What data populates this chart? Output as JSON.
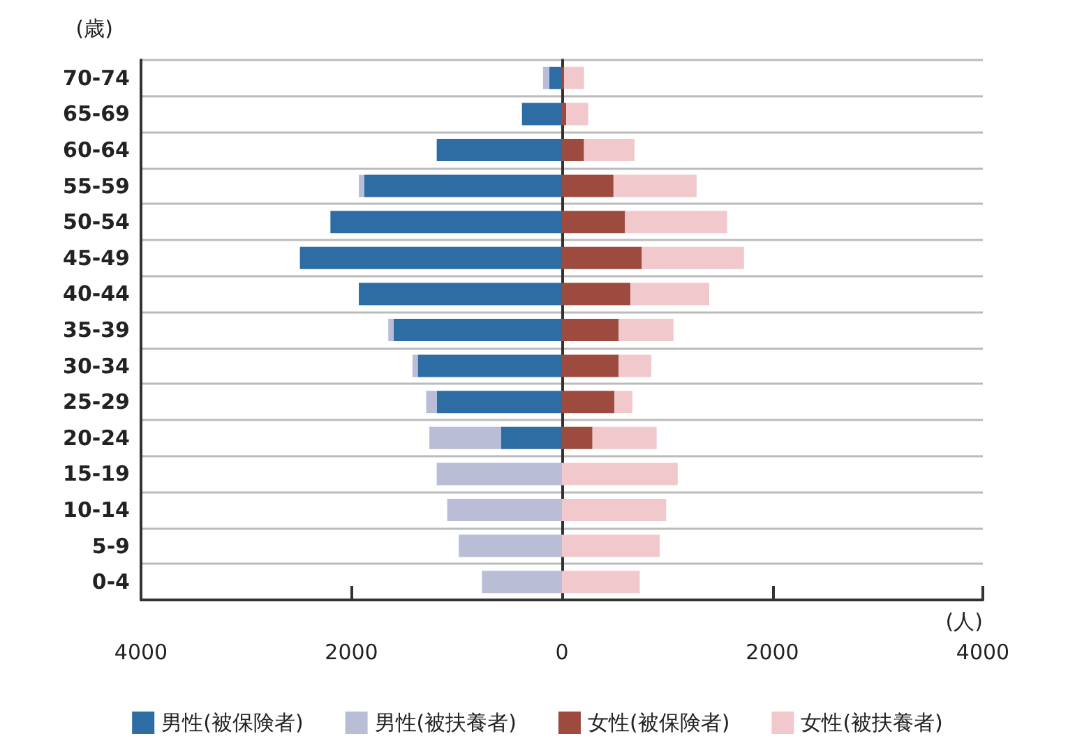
{
  "chart_data": {
    "type": "bar",
    "orientation": "horizontal",
    "stacked": true,
    "categories": [
      "70-74",
      "65-69",
      "60-64",
      "55-59",
      "50-54",
      "45-49",
      "40-44",
      "35-39",
      "30-34",
      "25-29",
      "20-24",
      "15-19",
      "10-14",
      "5-9",
      "0-4"
    ],
    "series": [
      {
        "name": "男性(被保険者)",
        "color": "#2e6ca4",
        "values": [
          -120,
          -380,
          -1190,
          -1880,
          -2200,
          -2490,
          -1930,
          -1600,
          -1370,
          -1190,
          -580,
          0,
          0,
          0,
          0
        ]
      },
      {
        "name": "男性(被扶養者)",
        "color": "#b9bdd6",
        "values": [
          -60,
          null,
          null,
          -50,
          null,
          null,
          0,
          -50,
          -50,
          -100,
          -680,
          -1190,
          -1090,
          -980,
          -760
        ]
      },
      {
        "name": "女性(被保険者)",
        "color": "#9c4b3e",
        "values": [
          20,
          40,
          210,
          490,
          600,
          760,
          650,
          540,
          540,
          500,
          290,
          0,
          0,
          0,
          0
        ]
      },
      {
        "name": "女性(被扶養者)",
        "color": "#f1c9cd",
        "values": [
          190,
          210,
          480,
          790,
          970,
          970,
          750,
          520,
          310,
          170,
          610,
          1100,
          990,
          930,
          740
        ]
      }
    ],
    "xlim": [
      -4000,
      4000
    ],
    "xticks": [
      {
        "value": -4000,
        "label": "4000"
      },
      {
        "value": -2000,
        "label": "2000"
      },
      0,
      2000,
      4000
    ],
    "xlabel": "(人)",
    "ylabel": "(歳)",
    "grid": "y",
    "legend": "bottom"
  }
}
